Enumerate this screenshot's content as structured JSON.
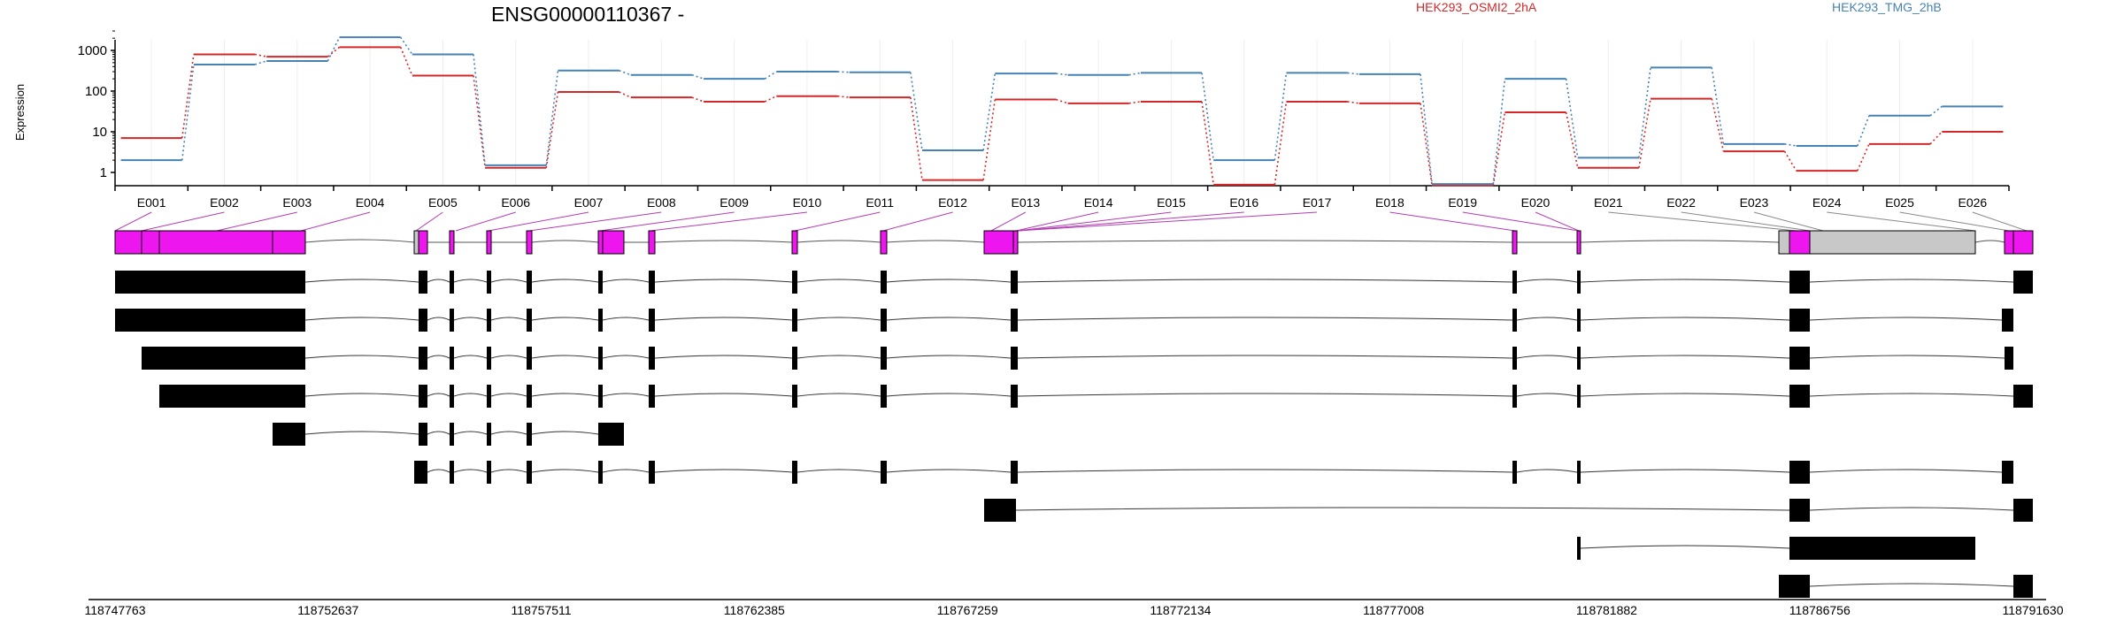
{
  "chart_data": {
    "type": "line",
    "title": "ENSG00000110367 -",
    "ylabel": "Expression",
    "y_scale": "log",
    "yticks": [
      "1",
      "10",
      "100",
      "1000"
    ],
    "grid": "vertical, light",
    "legend_position": "top-right",
    "exons": [
      "E001",
      "E002",
      "E003",
      "E004",
      "E005",
      "E006",
      "E007",
      "E008",
      "E009",
      "E010",
      "E011",
      "E012",
      "E013",
      "E014",
      "E015",
      "E016",
      "E017",
      "E018",
      "E019",
      "E020",
      "E021",
      "E022",
      "E023",
      "E024",
      "E025",
      "E026"
    ],
    "series": [
      {
        "name": "HEK293_OSMI2_2hA",
        "color": "#d62728",
        "values": [
          7,
          800,
          700,
          1200,
          240,
          1.3,
          95,
          70,
          55,
          75,
          70,
          0.65,
          62,
          50,
          55,
          0.5,
          55,
          50,
          0.48,
          30,
          1.3,
          65,
          3.3,
          1.1,
          5,
          10
        ]
      },
      {
        "name": "HEK293_TMG_2hB",
        "color": "#4682b4",
        "values": [
          2,
          450,
          550,
          2100,
          800,
          1.5,
          320,
          250,
          200,
          300,
          290,
          3.5,
          270,
          250,
          280,
          2,
          280,
          260,
          0.52,
          200,
          2.3,
          380,
          5,
          4.5,
          25,
          42
        ]
      }
    ],
    "genomic_coordinates": [
      "118747763",
      "118752637",
      "118757511",
      "118762385",
      "118767259",
      "118772134",
      "118777008",
      "118781882",
      "118786756",
      "118791630"
    ],
    "gene_model_color": "#ee16ee",
    "intron_color": "#c8c8c8",
    "transcript_count": 9
  }
}
